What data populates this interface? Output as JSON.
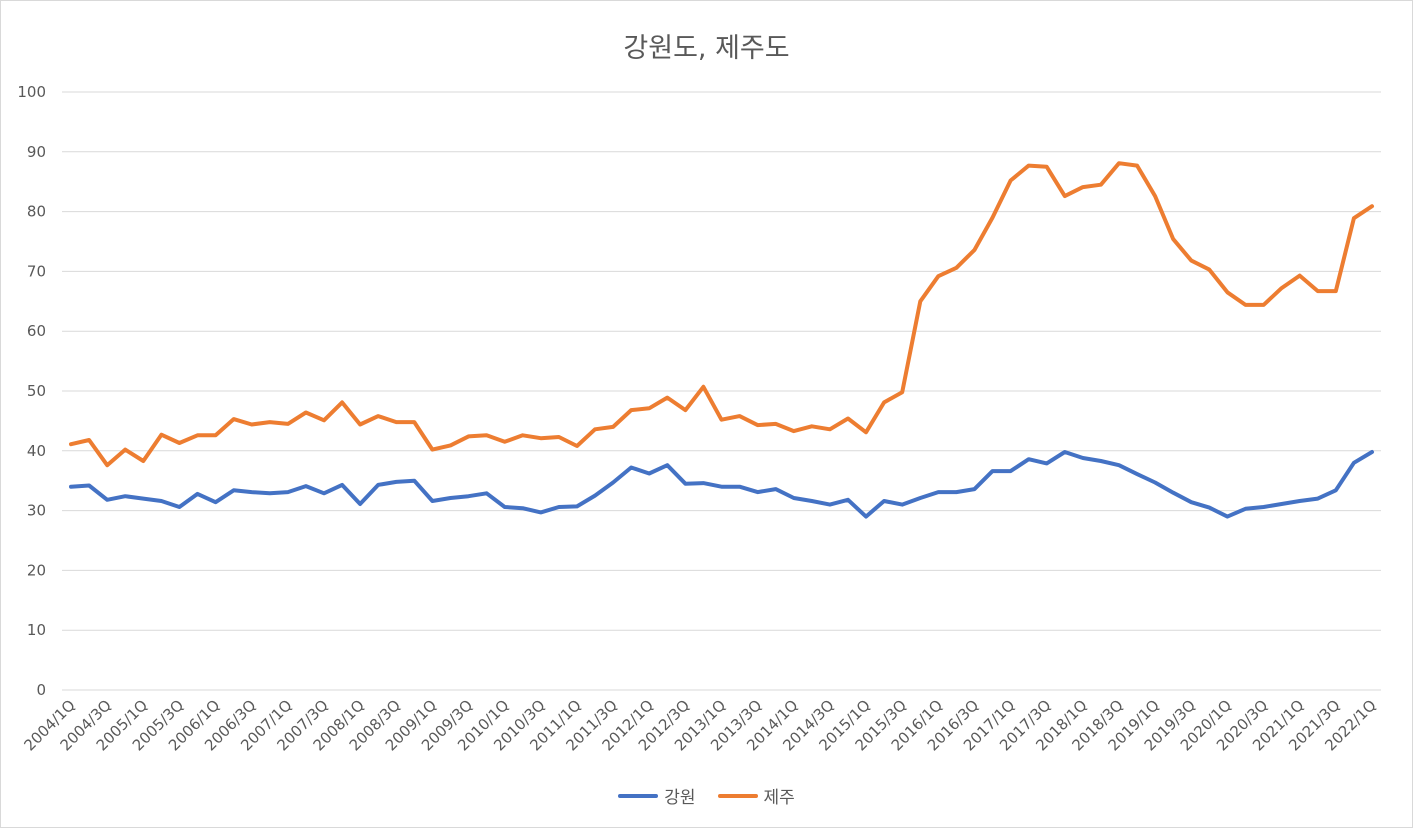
{
  "chart_data": {
    "type": "line",
    "title": "강원도, 제주도",
    "xlabel": "",
    "ylabel": "",
    "ylim": [
      0,
      100
    ],
    "yticks": [
      0,
      10,
      20,
      30,
      40,
      50,
      60,
      70,
      80,
      90,
      100
    ],
    "grid": true,
    "legend_position": "bottom",
    "x": [
      "2004/1Q",
      "2004/2Q",
      "2004/3Q",
      "2004/4Q",
      "2005/1Q",
      "2005/2Q",
      "2005/3Q",
      "2005/4Q",
      "2006/1Q",
      "2006/2Q",
      "2006/3Q",
      "2006/4Q",
      "2007/1Q",
      "2007/2Q",
      "2007/3Q",
      "2007/4Q",
      "2008/1Q",
      "2008/2Q",
      "2008/3Q",
      "2008/4Q",
      "2009/1Q",
      "2009/2Q",
      "2009/3Q",
      "2009/4Q",
      "2010/1Q",
      "2010/2Q",
      "2010/3Q",
      "2010/4Q",
      "2011/1Q",
      "2011/2Q",
      "2011/3Q",
      "2011/4Q",
      "2012/1Q",
      "2012/2Q",
      "2012/3Q",
      "2012/4Q",
      "2013/1Q",
      "2013/2Q",
      "2013/3Q",
      "2013/4Q",
      "2014/1Q",
      "2014/2Q",
      "2014/3Q",
      "2014/4Q",
      "2015/1Q",
      "2015/2Q",
      "2015/3Q",
      "2015/4Q",
      "2016/1Q",
      "2016/2Q",
      "2016/3Q",
      "2016/4Q",
      "2017/1Q",
      "2017/2Q",
      "2017/3Q",
      "2017/4Q",
      "2018/1Q",
      "2018/2Q",
      "2018/3Q",
      "2018/4Q",
      "2019/1Q",
      "2019/2Q",
      "2019/3Q",
      "2019/4Q",
      "2020/1Q",
      "2020/2Q",
      "2020/3Q",
      "2020/4Q",
      "2021/1Q",
      "2021/2Q",
      "2021/3Q",
      "2021/4Q",
      "2022/1Q"
    ],
    "x_tick_labels": [
      "2004/1Q",
      "2004/3Q",
      "2005/1Q",
      "2005/3Q",
      "2006/1Q",
      "2006/3Q",
      "2007/1Q",
      "2007/3Q",
      "2008/1Q",
      "2008/3Q",
      "2009/1Q",
      "2009/3Q",
      "2010/1Q",
      "2010/3Q",
      "2011/1Q",
      "2011/3Q",
      "2012/1Q",
      "2012/3Q",
      "2013/1Q",
      "2013/3Q",
      "2014/1Q",
      "2014/3Q",
      "2015/1Q",
      "2015/3Q",
      "2016/1Q",
      "2016/3Q",
      "2017/1Q",
      "2017/3Q",
      "2018/1Q",
      "2018/3Q",
      "2019/1Q",
      "2019/3Q",
      "2020/1Q",
      "2020/3Q",
      "2021/1Q",
      "2021/3Q",
      "2022/1Q"
    ],
    "series": [
      {
        "name": "강원",
        "color": "#4472C4",
        "values": [
          34.0,
          34.2,
          31.8,
          32.4,
          32.0,
          31.6,
          30.6,
          32.8,
          31.4,
          33.4,
          33.1,
          32.9,
          33.1,
          34.1,
          32.9,
          34.3,
          31.1,
          34.3,
          34.8,
          35.0,
          31.6,
          32.1,
          32.4,
          32.9,
          30.6,
          30.4,
          29.7,
          30.6,
          30.7,
          32.5,
          34.7,
          37.2,
          36.2,
          37.6,
          34.5,
          34.6,
          34.0,
          34.0,
          33.1,
          33.6,
          32.1,
          31.6,
          31.0,
          31.8,
          29.0,
          31.6,
          31.0,
          32.1,
          33.1,
          33.1,
          33.6,
          36.6,
          36.6,
          38.6,
          37.9,
          39.8,
          38.8,
          38.3,
          37.6,
          36.1,
          34.7,
          33.0,
          31.4,
          30.5,
          29.0,
          30.3,
          30.6,
          31.1,
          31.6,
          32.0,
          33.4,
          38.0,
          39.8
        ]
      },
      {
        "name": "제주",
        "color": "#ED7D31",
        "values": [
          41.1,
          41.8,
          37.6,
          40.2,
          38.3,
          42.7,
          41.3,
          42.6,
          42.6,
          45.3,
          44.4,
          44.8,
          44.5,
          46.4,
          45.1,
          48.1,
          44.4,
          45.8,
          44.8,
          44.8,
          40.2,
          40.9,
          42.4,
          42.6,
          41.5,
          42.6,
          42.1,
          42.3,
          40.8,
          43.6,
          44.0,
          46.8,
          47.1,
          48.9,
          46.8,
          50.7,
          45.2,
          45.8,
          44.3,
          44.5,
          43.3,
          44.1,
          43.6,
          45.4,
          43.1,
          48.1,
          49.8,
          65.0,
          69.2,
          70.6,
          73.6,
          79.0,
          85.2,
          87.7,
          87.5,
          82.6,
          84.1,
          84.5,
          88.1,
          87.7,
          82.6,
          75.4,
          71.8,
          70.3,
          66.5,
          64.4,
          64.4,
          67.2,
          69.3,
          66.7,
          66.7,
          78.9,
          80.9
        ]
      }
    ]
  }
}
